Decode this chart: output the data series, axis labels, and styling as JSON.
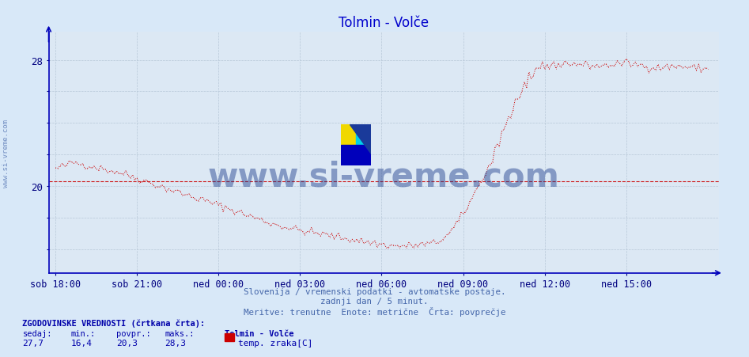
{
  "title": "Tolmin - Volče",
  "title_color": "#0000cc",
  "bg_color": "#d8e8f8",
  "plot_bg_color": "#dce8f4",
  "line_color": "#cc0000",
  "avg_line_color": "#cc0000",
  "avg_value": 20.3,
  "ylim": [
    14.5,
    29.8
  ],
  "ytick_positions": [
    16,
    18,
    20,
    22,
    24,
    26,
    28
  ],
  "ytick_labels": [
    "",
    "",
    "20",
    "",
    "",
    "",
    "28"
  ],
  "grid_color": "#b8c8d8",
  "axis_color": "#0000bb",
  "tick_color": "#000080",
  "xtick_labels": [
    "sob 18:00",
    "sob 21:00",
    "ned 00:00",
    "ned 03:00",
    "ned 06:00",
    "ned 09:00",
    "ned 12:00",
    "ned 15:00"
  ],
  "watermark_text": "www.si-vreme.com",
  "watermark_color": "#1a3a8a",
  "watermark_alpha": 0.45,
  "subtitle1": "Slovenija / vremenski podatki - avtomatske postaje.",
  "subtitle2": "zadnji dan / 5 minut.",
  "subtitle3": "Meritve: trenutne  Enote: metrične  Črta: povprečje",
  "subtitle_color": "#4466aa",
  "legend_title": "ZGODOVINSKE VREDNOSTI (črtkana črta):",
  "legend_headers": [
    "sedaj:",
    "min.:",
    "povpr.:",
    "maks.:"
  ],
  "legend_values": [
    "27,7",
    "16,4",
    "20,3",
    "28,3"
  ],
  "legend_series": "Tolmin - Volče",
  "legend_series_label": "temp. zraka[C]",
  "legend_color": "#0000aa",
  "left_label": "www.si-vreme.com",
  "left_label_color": "#4466aa",
  "n_points": 289,
  "key_t": [
    0,
    8,
    18,
    30,
    50,
    72,
    96,
    108,
    120,
    132,
    144,
    150,
    156,
    162,
    168,
    174,
    180,
    186,
    192,
    198,
    204,
    210,
    216,
    225,
    240,
    252,
    265,
    275,
    289
  ],
  "key_v": [
    21.1,
    21.5,
    21.2,
    20.8,
    19.8,
    18.8,
    17.6,
    17.2,
    16.9,
    16.6,
    16.3,
    16.2,
    16.2,
    16.3,
    16.4,
    17.0,
    18.2,
    19.8,
    21.5,
    23.5,
    25.5,
    26.8,
    27.5,
    27.8,
    27.6,
    27.8,
    27.5,
    27.6,
    27.4
  ]
}
